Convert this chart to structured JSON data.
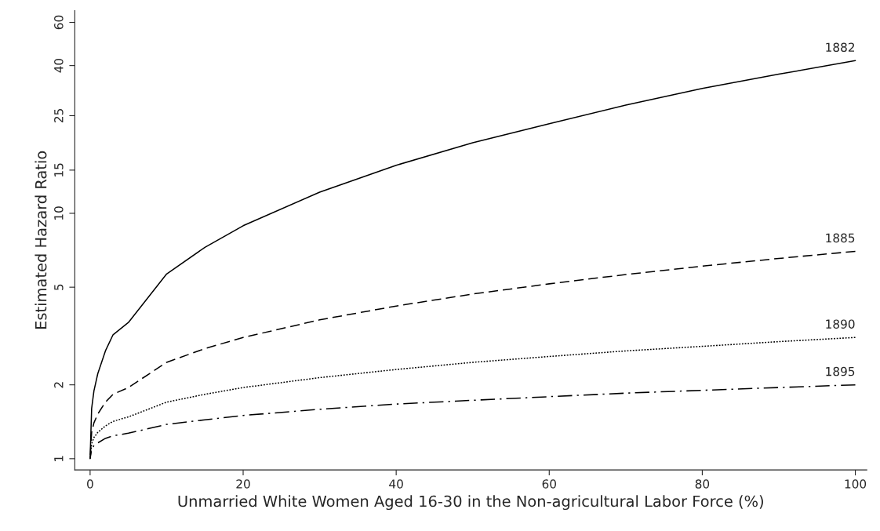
{
  "chart_data": {
    "type": "line",
    "xlabel": "Unmarried White Women Aged 16-30 in the Non-agricultural Labor Force (%)",
    "ylabel": "Estimated Hazard Ratio",
    "log": "y",
    "grid": false,
    "legend": false,
    "marker": "none",
    "x": [
      0,
      0.2,
      0.5,
      1,
      2,
      3,
      5,
      10,
      15,
      20,
      30,
      40,
      50,
      60,
      70,
      80,
      90,
      100
    ],
    "series": [
      {
        "name": "1882",
        "color": "#000000",
        "line_style": "solid",
        "values": [
          1,
          1.6,
          1.89,
          2.22,
          2.75,
          3.2,
          3.59,
          5.66,
          7.27,
          8.9,
          12.2,
          15.7,
          19.4,
          23.2,
          27.6,
          32.3,
          36.9,
          41.9
        ]
      },
      {
        "name": "1885",
        "color": "#000000",
        "line_style": "dashed",
        "values": [
          1,
          1.28,
          1.4,
          1.52,
          1.7,
          1.83,
          1.95,
          2.47,
          2.81,
          3.12,
          3.68,
          4.19,
          4.69,
          5.16,
          5.63,
          6.09,
          6.55,
          7.0
        ]
      },
      {
        "name": "1890",
        "color": "#000000",
        "line_style": "dotted",
        "values": [
          1,
          1.15,
          1.22,
          1.28,
          1.36,
          1.42,
          1.48,
          1.7,
          1.83,
          1.95,
          2.14,
          2.31,
          2.47,
          2.61,
          2.75,
          2.87,
          3.0,
          3.12
        ]
      },
      {
        "name": "1895",
        "color": "#000000",
        "line_style": "dashdot",
        "values": [
          1,
          1.09,
          1.13,
          1.16,
          1.21,
          1.24,
          1.27,
          1.38,
          1.44,
          1.5,
          1.59,
          1.67,
          1.73,
          1.79,
          1.85,
          1.9,
          1.95,
          2.0
        ]
      }
    ],
    "xlim": [
      -2,
      101.5
    ],
    "xticks": [
      0,
      20,
      40,
      60,
      80,
      100
    ],
    "ylim": [
      0.9,
      67
    ],
    "yticks": [
      1,
      2,
      5,
      10,
      15,
      25,
      40,
      60
    ]
  }
}
